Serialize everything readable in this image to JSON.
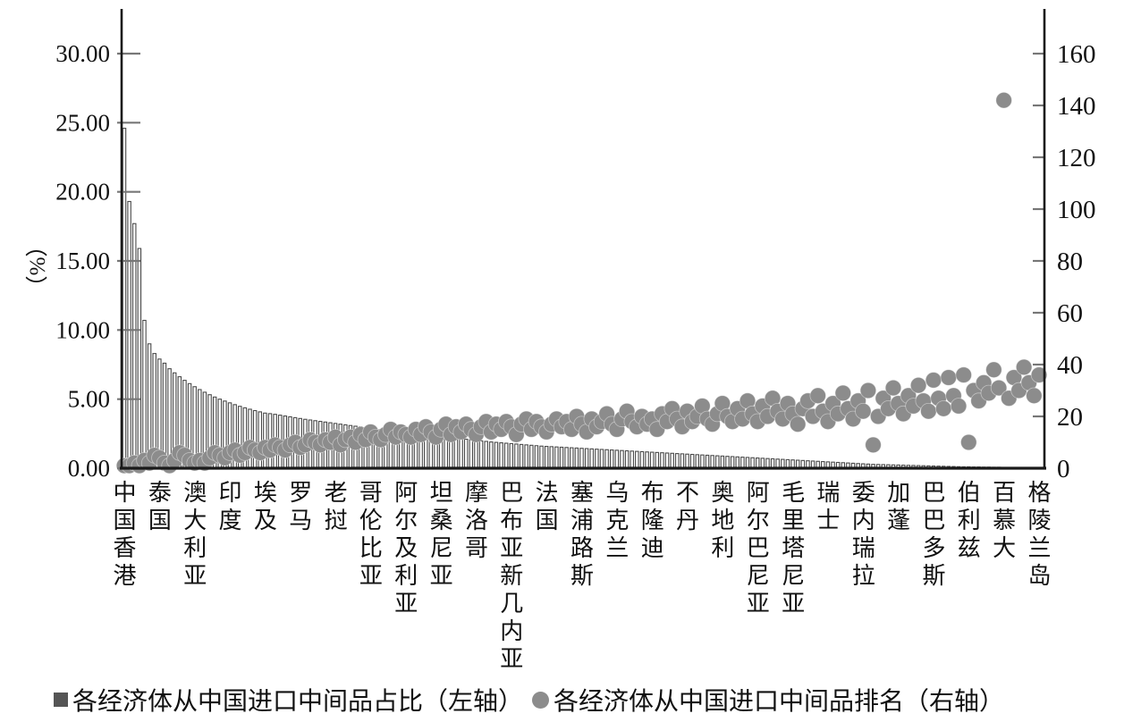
{
  "figure": {
    "background": "#ffffff"
  },
  "chart_data": {
    "type": "bar+scatter",
    "title": "",
    "left_axis": {
      "label": "（%）",
      "tick_labels": [
        "0.00",
        "5.00",
        "10.00",
        "15.00",
        "20.00",
        "25.00",
        "30.00"
      ],
      "tick_values": [
        0,
        5,
        10,
        15,
        20,
        25,
        30
      ],
      "range": [
        0,
        30
      ],
      "grid": false
    },
    "right_axis": {
      "label": "",
      "tick_labels": [
        "0",
        "20",
        "40",
        "60",
        "80",
        "100",
        "120",
        "140",
        "160"
      ],
      "tick_values": [
        0,
        20,
        40,
        60,
        80,
        100,
        120,
        140,
        160
      ],
      "range": [
        0,
        160
      ],
      "grid": false
    },
    "x_labels": [
      "中国香港",
      "泰国",
      "澳大利亚",
      "印度",
      "埃及",
      "罗马",
      "老挝",
      "哥伦比亚",
      "阿尔及利亚",
      "坦桑尼亚",
      "摩洛哥",
      "巴布亚新几内亚",
      "法国",
      "塞浦路斯",
      "乌克兰",
      "布隆迪",
      "不丹",
      "奥地利",
      "阿尔巴尼亚",
      "毛里塔尼亚",
      "瑞士",
      "委内瑞拉",
      "加蓬",
      "巴巴多斯",
      "伯利兹",
      "百慕大",
      "格陵兰岛"
    ],
    "label_every_n_bars": 7,
    "colors": {
      "bar_stroke": "#4a4a4a",
      "bar_fill": "#ffffff",
      "dot_fill": "#8c8c8c",
      "axis": "#1a1a1a",
      "tick": "#777777",
      "legend_square": "#555555"
    },
    "series": [
      {
        "name": "各经济体从中国进口中间品占比（左轴）",
        "type": "bar",
        "axis": "left",
        "values": [
          24.6,
          19.3,
          17.7,
          15.9,
          10.7,
          9.0,
          8.3,
          7.9,
          7.6,
          7.2,
          6.9,
          6.62,
          6.36,
          6.12,
          5.9,
          5.69,
          5.5,
          5.32,
          5.15,
          5.0,
          4.86,
          4.73,
          4.6,
          4.48,
          4.37,
          4.27,
          4.17,
          4.08,
          3.99,
          3.95,
          3.9,
          3.84,
          3.78,
          3.72,
          3.66,
          3.6,
          3.54,
          3.49,
          3.44,
          3.39,
          3.34,
          3.29,
          3.24,
          3.19,
          3.14,
          3.09,
          3.04,
          2.99,
          2.94,
          2.89,
          2.84,
          2.79,
          2.74,
          2.7,
          2.66,
          2.62,
          2.58,
          2.54,
          2.5,
          2.46,
          2.42,
          2.38,
          2.34,
          2.3,
          2.26,
          2.22,
          2.18,
          2.14,
          2.1,
          2.06,
          2.02,
          1.98,
          1.94,
          1.9,
          1.87,
          1.84,
          1.81,
          1.78,
          1.75,
          1.72,
          1.69,
          1.66,
          1.63,
          1.6,
          1.58,
          1.56,
          1.54,
          1.52,
          1.5,
          1.48,
          1.46,
          1.44,
          1.42,
          1.4,
          1.38,
          1.36,
          1.34,
          1.32,
          1.3,
          1.28,
          1.26,
          1.24,
          1.22,
          1.2,
          1.18,
          1.16,
          1.14,
          1.12,
          1.1,
          1.08,
          1.06,
          1.04,
          1.02,
          1.0,
          0.98,
          0.96,
          0.94,
          0.92,
          0.9,
          0.88,
          0.86,
          0.84,
          0.82,
          0.8,
          0.78,
          0.76,
          0.74,
          0.72,
          0.7,
          0.68,
          0.66,
          0.64,
          0.62,
          0.6,
          0.58,
          0.56,
          0.54,
          0.52,
          0.5,
          0.48,
          0.46,
          0.44,
          0.42,
          0.4,
          0.38,
          0.36,
          0.34,
          0.32,
          0.3,
          0.28,
          0.27,
          0.26,
          0.25,
          0.24,
          0.23,
          0.22,
          0.21,
          0.2,
          0.19,
          0.18,
          0.17,
          0.16,
          0.15,
          0.14,
          0.13,
          0.12,
          0.11,
          0.1,
          0.1,
          0.09,
          0.09,
          0.08,
          0.08,
          0.07,
          0.07,
          0.06,
          0.06,
          0.05,
          0.05,
          0.04,
          0.04,
          0.03,
          0.03
        ]
      },
      {
        "name": "各经济体从中国进口中间品排名（右轴）",
        "type": "scatter",
        "axis": "right",
        "values": [
          1,
          1,
          2,
          1,
          3,
          2,
          5,
          4,
          2,
          1,
          3,
          6,
          5,
          3,
          2,
          3,
          2,
          4,
          6,
          5,
          4,
          6,
          7,
          5,
          6,
          8,
          7,
          6,
          8,
          7,
          9,
          8,
          7,
          9,
          10,
          8,
          9,
          11,
          10,
          9,
          11,
          10,
          12,
          9,
          11,
          12,
          10,
          13,
          11,
          14,
          12,
          11,
          13,
          15,
          12,
          14,
          13,
          12,
          15,
          13,
          16,
          14,
          12,
          15,
          17,
          13,
          16,
          14,
          17,
          15,
          13,
          16,
          18,
          14,
          17,
          15,
          18,
          16,
          13,
          17,
          19,
          15,
          18,
          16,
          14,
          17,
          19,
          16,
          18,
          15,
          20,
          17,
          14,
          19,
          16,
          18,
          21,
          17,
          15,
          19,
          22,
          18,
          16,
          20,
          17,
          19,
          15,
          21,
          18,
          23,
          19,
          16,
          22,
          18,
          20,
          24,
          19,
          17,
          21,
          25,
          20,
          18,
          23,
          19,
          26,
          21,
          18,
          24,
          20,
          27,
          22,
          19,
          25,
          21,
          17,
          23,
          26,
          20,
          28,
          22,
          18,
          25,
          21,
          29,
          23,
          19,
          26,
          22,
          30,
          9,
          20,
          27,
          23,
          31,
          25,
          21,
          28,
          24,
          32,
          26,
          22,
          34,
          27,
          23,
          35,
          28,
          24,
          36,
          10,
          30,
          26,
          33,
          29,
          38,
          31,
          142,
          27,
          35,
          30,
          39,
          33,
          28,
          36
        ]
      }
    ],
    "legend": [
      {
        "marker": "square",
        "label": "各经济体从中国进口中间品占比（左轴）"
      },
      {
        "marker": "circle",
        "label": "各经济体从中国进口中间品排名（右轴）"
      }
    ]
  }
}
